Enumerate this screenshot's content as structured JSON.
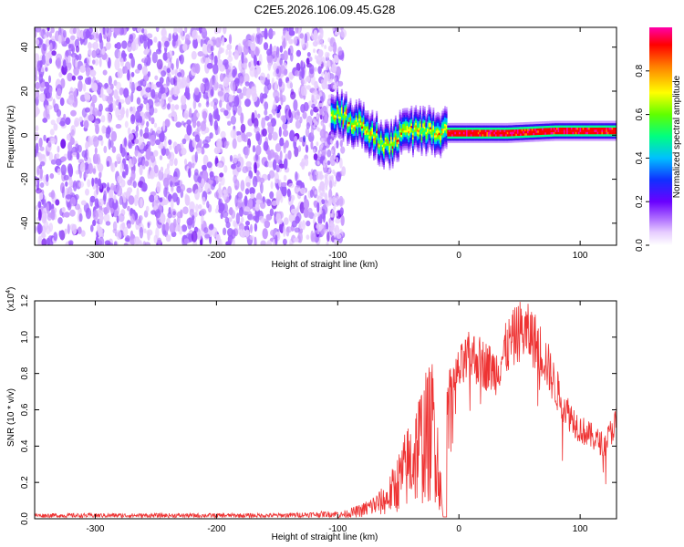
{
  "title": "C2E5.2026.106.09.45.G28",
  "colors": {
    "snr_line": "#ee3333",
    "palette": [
      "#ffffff",
      "#e6ccff",
      "#c899ff",
      "#a060ff",
      "#7a1ef0",
      "#3a10f0",
      "#0a30ff",
      "#00b8ff",
      "#00ff90",
      "#70ff00",
      "#ffff00",
      "#ff8000",
      "#ff0000",
      "#ff00aa"
    ]
  },
  "chart_data": [
    {
      "type": "heatmap",
      "title": "C2E5.2026.106.09.45.G28",
      "xlabel": "Height of straight line (km)",
      "ylabel": "Frequency (Hz)",
      "xlim": [
        -350,
        130
      ],
      "ylim": [
        -50,
        49
      ],
      "x_ticks": [
        -300,
        -200,
        -100,
        0,
        100
      ],
      "y_ticks": [
        -40,
        -20,
        0,
        20,
        40
      ],
      "colorbar": {
        "label": "Normalized spectral amplitude",
        "range": [
          0,
          1
        ],
        "ticks": [
          "0.0",
          "0.2",
          "0.4",
          "0.6",
          "0.8"
        ]
      },
      "ridge": {
        "description_points_x": [
          -100,
          -80,
          -60,
          -40,
          -25,
          -10,
          0,
          40,
          80,
          130
        ],
        "description_points_y": [
          10,
          4,
          -5,
          2,
          3,
          1,
          1,
          1,
          2,
          2
        ]
      }
    },
    {
      "type": "line",
      "xlabel": "Height of straight line (km)",
      "ylabel": "SNR (10 * v/v)",
      "exponent_label": "(x10",
      "exponent_power": "4",
      "exponent_close": ")",
      "xlim": [
        -350,
        130
      ],
      "ylim": [
        0,
        1.2
      ],
      "x_ticks": [
        -300,
        -200,
        -100,
        0,
        100
      ],
      "y_ticks": [
        "0.0",
        "0.2",
        "0.4",
        "0.6",
        "0.8",
        "1.0",
        "1.2"
      ],
      "series": [
        {
          "name": "SNR",
          "envelope_x": [
            -350,
            -150,
            -100,
            -80,
            -60,
            -50,
            -40,
            -30,
            -25,
            -20,
            -13,
            -10,
            0,
            10,
            20,
            30,
            40,
            50,
            60,
            70,
            80,
            90,
            100,
            110,
            120,
            130
          ],
          "envelope_y": [
            0.02,
            0.02,
            0.03,
            0.08,
            0.18,
            0.35,
            0.55,
            0.75,
            0.8,
            0.9,
            0.0,
            0.75,
            0.9,
            1.0,
            0.95,
            0.9,
            1.05,
            1.15,
            1.12,
            1.0,
            0.8,
            0.65,
            0.55,
            0.5,
            0.45,
            0.6
          ]
        }
      ]
    }
  ]
}
